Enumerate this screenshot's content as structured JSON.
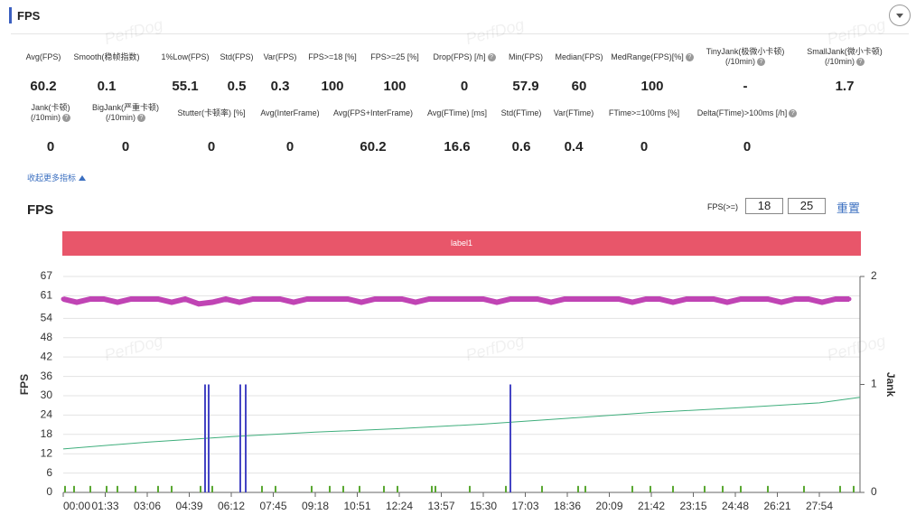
{
  "header": {
    "title": "FPS"
  },
  "watermark": "PerfDog",
  "metrics": [
    [
      {
        "label": "Avg(FPS)",
        "value": 60.2,
        "help": false
      },
      {
        "label": "Smooth(稳帧指数)",
        "value": 0.1,
        "help": false
      },
      {
        "label": "1%Low(FPS)",
        "value": 55.1,
        "help": false
      },
      {
        "label": "Std(FPS)",
        "value": 0.5,
        "help": false
      },
      {
        "label": "Var(FPS)",
        "value": 0.3,
        "help": false
      },
      {
        "label": "FPS>=18 [%]",
        "value": 100,
        "help": false
      },
      {
        "label": "FPS>=25 [%]",
        "value": 100,
        "help": false
      },
      {
        "label": "Drop(FPS) [/h]",
        "value": 0,
        "help": true
      },
      {
        "label": "Min(FPS)",
        "value": 57.9,
        "help": false
      },
      {
        "label": "Median(FPS)",
        "value": 60,
        "help": false
      },
      {
        "label": "MedRange(FPS)[%]",
        "value": 100,
        "help": true
      },
      {
        "label": "TinyJank(极微小卡顿)\n(/10min)",
        "value": "-",
        "help": true
      },
      {
        "label": "SmallJank(微小卡顿)\n(/10min)",
        "value": 1.7,
        "help": true
      }
    ],
    [
      {
        "label": "Jank(卡顿)\n(/10min)",
        "value": 0,
        "help": true
      },
      {
        "label": "BigJank(严重卡顿)\n(/10min)",
        "value": 0,
        "help": true
      },
      {
        "label": "Stutter(卡顿率) [%]",
        "value": 0,
        "help": false
      },
      {
        "label": "Avg(InterFrame)",
        "value": 0,
        "help": false
      },
      {
        "label": "Avg(FPS+InterFrame)",
        "value": 60.2,
        "help": false
      },
      {
        "label": "Avg(FTime) [ms]",
        "value": 16.6,
        "help": false
      },
      {
        "label": "Std(FTime)",
        "value": 0.6,
        "help": false
      },
      {
        "label": "Var(FTime)",
        "value": 0.4,
        "help": false
      },
      {
        "label": "FTime>=100ms [%]",
        "value": 0,
        "help": false
      },
      {
        "label": "Delta(FTime)>100ms [/h]",
        "value": 0,
        "help": true
      }
    ]
  ],
  "collapse": "收起更多指标",
  "section_title": "FPS",
  "threshold": {
    "label": "FPS(>=)",
    "values": [
      18,
      25
    ],
    "reset": "重置"
  },
  "label_bar": "label1",
  "chart_data": {
    "type": "line",
    "y_label": "FPS",
    "y2_label": "Jank",
    "xlim": [
      0,
      1764
    ],
    "xticks": [
      {
        "value": 0,
        "label": "00:00"
      },
      {
        "value": 93,
        "label": "01:33"
      },
      {
        "value": 186,
        "label": "03:06"
      },
      {
        "value": 279,
        "label": "04:39"
      },
      {
        "value": 372,
        "label": "06:12"
      },
      {
        "value": 465,
        "label": "07:45"
      },
      {
        "value": 558,
        "label": "09:18"
      },
      {
        "value": 651,
        "label": "10:51"
      },
      {
        "value": 744,
        "label": "12:24"
      },
      {
        "value": 837,
        "label": "13:57"
      },
      {
        "value": 930,
        "label": "15:30"
      },
      {
        "value": 1023,
        "label": "17:03"
      },
      {
        "value": 1116,
        "label": "18:36"
      },
      {
        "value": 1209,
        "label": "20:09"
      },
      {
        "value": 1302,
        "label": "21:42"
      },
      {
        "value": 1395,
        "label": "23:15"
      },
      {
        "value": 1488,
        "label": "24:48"
      },
      {
        "value": 1581,
        "label": "26:21"
      },
      {
        "value": 1674,
        "label": "27:54"
      }
    ],
    "ylim": [
      0,
      67
    ],
    "yticks": [
      0,
      6,
      12,
      18,
      24,
      30,
      36,
      42,
      48,
      54,
      61,
      67
    ],
    "y2lim": [
      0,
      2
    ],
    "y2ticks": [
      0,
      1,
      2
    ],
    "series": [
      {
        "color": "#c044b4",
        "type": "line",
        "x": [
          0,
          30,
          60,
          90,
          120,
          150,
          180,
          210,
          240,
          270,
          300,
          330,
          360,
          390,
          420,
          450,
          480,
          510,
          540,
          570,
          600,
          630,
          660,
          690,
          720,
          750,
          780,
          810,
          840,
          870,
          900,
          930,
          960,
          990,
          1020,
          1050,
          1080,
          1110,
          1140,
          1170,
          1200,
          1230,
          1260,
          1290,
          1320,
          1350,
          1380,
          1410,
          1440,
          1470,
          1500,
          1530,
          1560,
          1590,
          1620,
          1650,
          1680,
          1710,
          1740
        ],
        "values": [
          60,
          59,
          60,
          60,
          59,
          60,
          60,
          60,
          59,
          60,
          58.5,
          59,
          60,
          59,
          60,
          60,
          60,
          59,
          60,
          60,
          60,
          60,
          59,
          60,
          60,
          60,
          59,
          60,
          60,
          60,
          60,
          60,
          59,
          60,
          60,
          60,
          59,
          60,
          60,
          60,
          60,
          60,
          59,
          60,
          60,
          59,
          60,
          60,
          60,
          59,
          60,
          60,
          60,
          59,
          60,
          60,
          59,
          60,
          60
        ]
      },
      {
        "color": "#3fae7c",
        "type": "line",
        "x": [
          0,
          186,
          372,
          558,
          744,
          930,
          1116,
          1302,
          1488,
          1674,
          1764
        ],
        "values": [
          13.5,
          15.6,
          17.3,
          18.7,
          19.8,
          21.2,
          23,
          24.8,
          26.2,
          27.8,
          29.5
        ]
      },
      {
        "color": "#4444c4",
        "type": "bar",
        "axis": "y2",
        "x": [
          314,
          322,
          392,
          404,
          990
        ],
        "values": [
          1,
          1,
          1,
          1,
          1
        ]
      },
      {
        "color": "#5aa832",
        "type": "bar",
        "axis": "y2",
        "x": [
          4,
          24,
          60,
          96,
          120,
          160,
          210,
          240,
          304,
          330,
          440,
          470,
          550,
          590,
          620,
          656,
          710,
          740,
          816,
          824,
          900,
          980,
          1060,
          1140,
          1156,
          1260,
          1300,
          1350,
          1420,
          1460,
          1500,
          1560,
          1640,
          1720,
          1750
        ],
        "values": [
          0.06,
          0.06,
          0.06,
          0.06,
          0.06,
          0.06,
          0.06,
          0.06,
          0.06,
          0.06,
          0.06,
          0.06,
          0.06,
          0.06,
          0.06,
          0.06,
          0.06,
          0.06,
          0.06,
          0.06,
          0.06,
          0.06,
          0.06,
          0.06,
          0.06,
          0.06,
          0.06,
          0.06,
          0.06,
          0.06,
          0.06,
          0.06,
          0.06,
          0.06,
          0.06
        ]
      }
    ]
  }
}
